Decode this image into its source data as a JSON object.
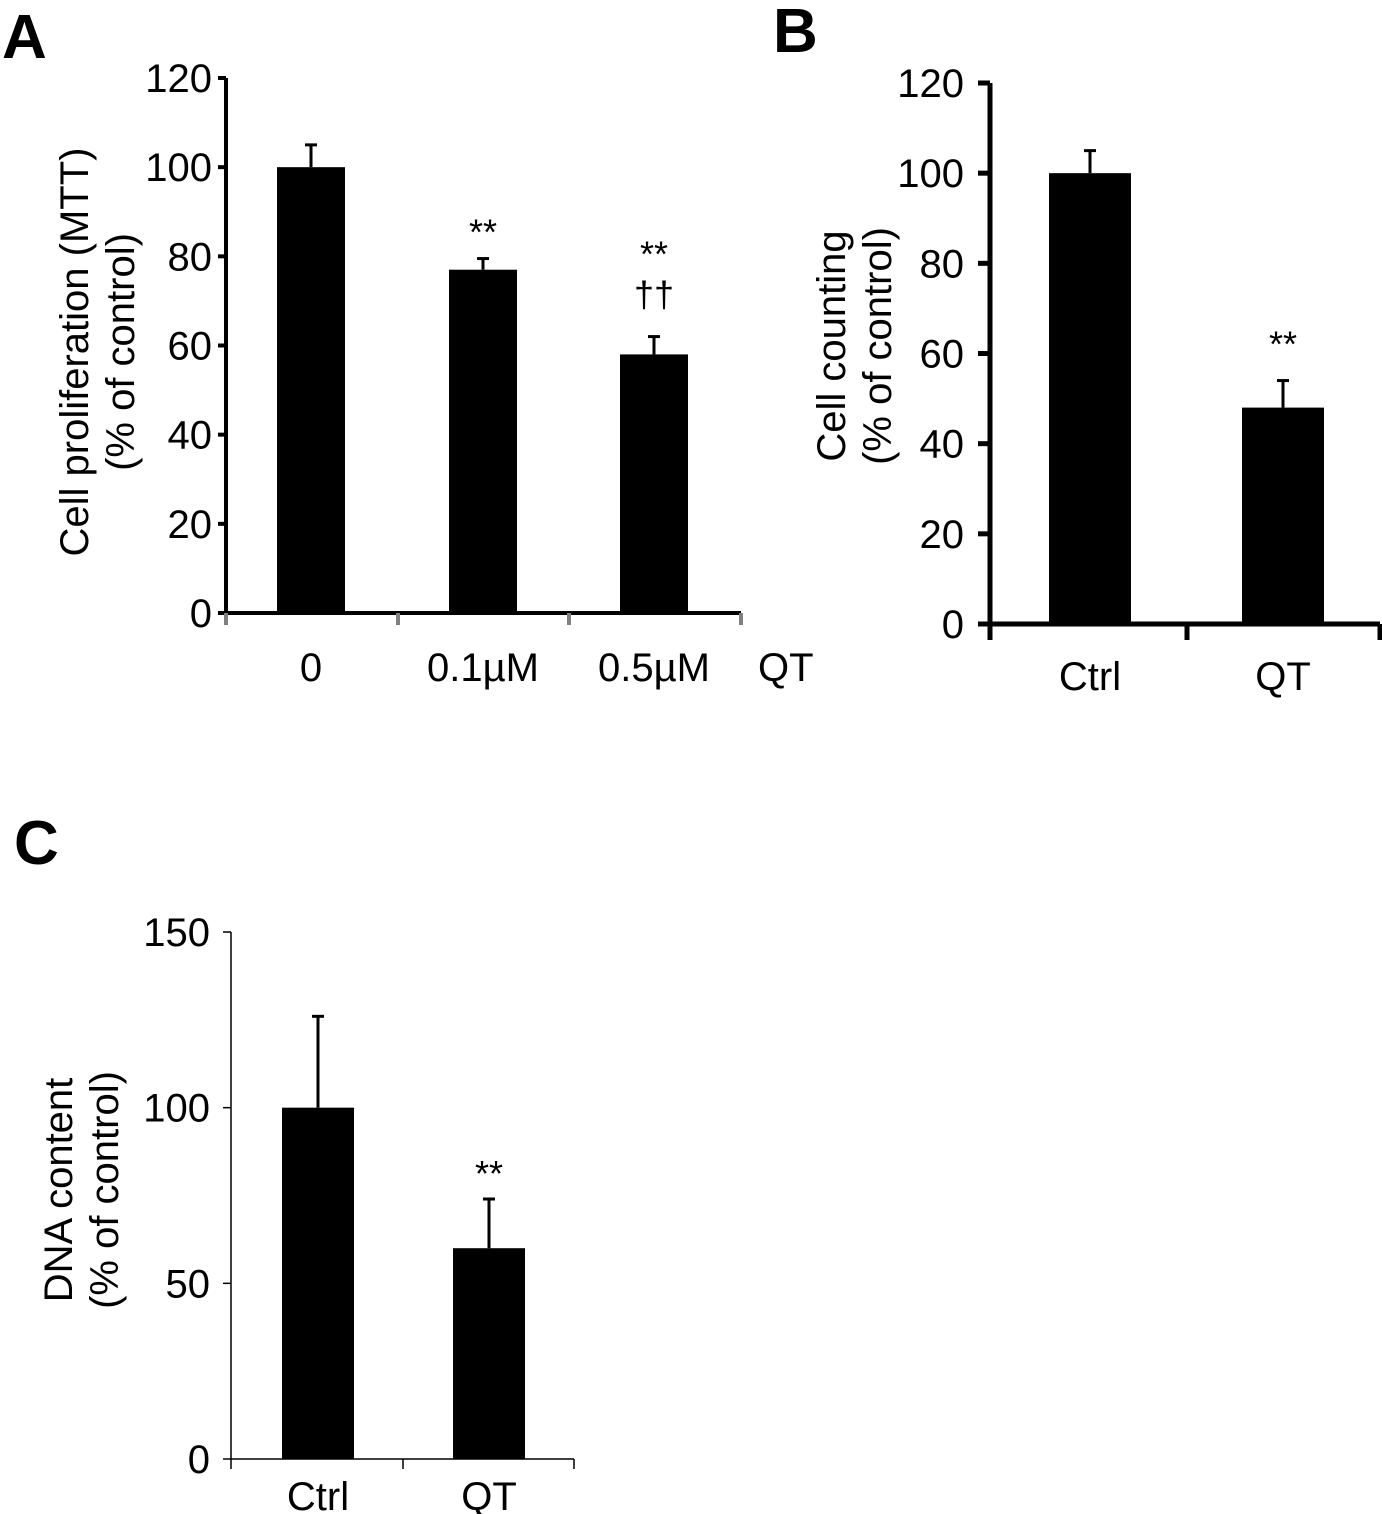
{
  "panels": [
    {
      "letter": "A"
    },
    {
      "letter": "B"
    },
    {
      "letter": "C"
    }
  ],
  "chart_data": [
    {
      "type": "bar",
      "panel": "A",
      "categories": [
        "0",
        "0.1µM",
        "0.5µM"
      ],
      "xlabel": "QT",
      "ylabel": [
        "Cell proliferation (MTT)",
        "(% of  control)"
      ],
      "ylim": [
        0,
        120
      ],
      "yticks": [
        "0",
        "20",
        "40",
        "60",
        "80",
        "100",
        "120"
      ],
      "series": [
        {
          "values": [
            100,
            77,
            58
          ],
          "errors": [
            5,
            2.5,
            4
          ]
        }
      ],
      "annotations": [
        {
          "category": "0.1µM",
          "lines": [
            "**"
          ]
        },
        {
          "category": "0.5µM",
          "lines": [
            "**",
            "††"
          ]
        }
      ],
      "grid": false,
      "colors": {
        "bars": "#000000",
        "axis": "#000000"
      }
    },
    {
      "type": "bar",
      "panel": "B",
      "categories": [
        "Ctrl",
        "QT"
      ],
      "xlabel": "",
      "ylabel": [
        "Cell counting",
        "(% of  control)"
      ],
      "ylim": [
        0,
        120
      ],
      "yticks": [
        "0",
        "20",
        "40",
        "60",
        "80",
        "100",
        "120"
      ],
      "series": [
        {
          "values": [
            100,
            48
          ],
          "errors": [
            5,
            6
          ]
        }
      ],
      "annotations": [
        {
          "category": "QT",
          "lines": [
            "**"
          ]
        }
      ],
      "grid": false,
      "colors": {
        "bars": "#000000",
        "axis": "#000000"
      }
    },
    {
      "type": "bar",
      "panel": "C",
      "categories": [
        "Ctrl",
        "QT"
      ],
      "xlabel": "",
      "ylabel": [
        "DNA content",
        "(% of control)"
      ],
      "ylim": [
        0,
        150
      ],
      "yticks": [
        "0",
        "50",
        "100",
        "150"
      ],
      "series": [
        {
          "values": [
            100,
            60
          ],
          "errors": [
            26,
            14
          ]
        }
      ],
      "annotations": [
        {
          "category": "QT",
          "lines": [
            "**"
          ]
        }
      ],
      "grid": false,
      "colors": {
        "bars": "#000000",
        "axis": "#000000"
      }
    }
  ]
}
